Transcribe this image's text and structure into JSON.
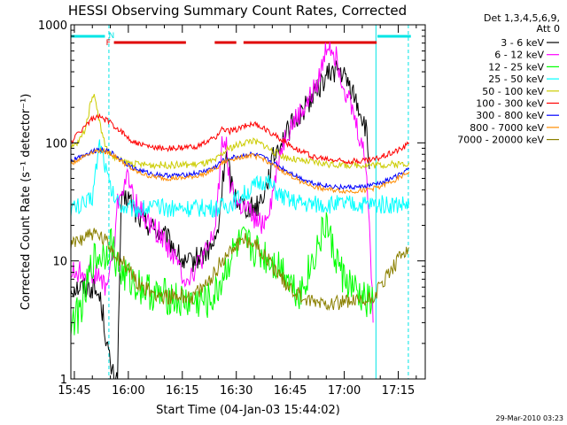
{
  "chart_data": {
    "type": "line",
    "title": "HESSI Observing Summary Count Rates, Corrected",
    "xlabel": "Start Time (04-Jan-03 15:44:02)",
    "ylabel": "Corrected Count Rate (s⁻¹ detector⁻¹)",
    "y_scale": "log",
    "ylim": [
      1,
      1000
    ],
    "xlim": [
      "15:44:02",
      "17:22:30"
    ],
    "x_unit": "minutes since 15:00",
    "x_ticks": [
      {
        "value": 45,
        "label": "15:45"
      },
      {
        "value": 60,
        "label": "16:00"
      },
      {
        "value": 75,
        "label": "16:15"
      },
      {
        "value": 90,
        "label": "16:30"
      },
      {
        "value": 105,
        "label": "16:45"
      },
      {
        "value": 120,
        "label": "17:00"
      },
      {
        "value": 135,
        "label": "17:15"
      }
    ],
    "y_ticks": [
      {
        "value": 1,
        "label": "1"
      },
      {
        "value": 10,
        "label": "10"
      },
      {
        "value": 100,
        "label": "100"
      },
      {
        "value": 1000,
        "label": "1000"
      }
    ],
    "legend_header": [
      "Det 1,3,4,5,6,9,",
      "Att 0"
    ],
    "legend_position": "right",
    "timestamp": "29-Mar-2010 03:23",
    "flags": {
      "night_label": "N",
      "flare_label": "F",
      "night_color": "#00e5e5",
      "flare_color": "#e00000",
      "night_bars": [
        [
          44.0,
          53.5
        ],
        [
          129.2,
          138.5
        ]
      ],
      "flare_bars": [
        [
          56.0,
          76.0
        ],
        [
          84.0,
          90.0
        ],
        [
          92.0,
          129.0
        ]
      ],
      "night_boundaries": [
        {
          "x": 54.6,
          "style": "dashed"
        },
        {
          "x": 128.8,
          "style": "solid"
        },
        {
          "x": 137.8,
          "style": "dashed"
        }
      ]
    },
    "series": [
      {
        "name": "3 - 6 keV",
        "color": "#000000",
        "x": [
          44,
          48,
          50,
          52,
          53,
          54,
          55,
          56,
          57,
          58,
          60,
          62,
          64,
          66,
          68,
          70,
          72,
          74,
          76,
          78,
          80,
          82,
          84,
          85,
          86,
          87,
          88,
          89,
          90,
          92,
          94,
          96,
          98,
          100,
          102,
          104,
          106,
          108,
          110,
          112,
          114,
          116,
          118,
          120,
          122,
          124,
          126,
          127
        ],
        "values": [
          6,
          6,
          6,
          5,
          3.5,
          2,
          1.3,
          1,
          1,
          30,
          35,
          25,
          22,
          20,
          18,
          16,
          14,
          11,
          9,
          10,
          11,
          12,
          14,
          18,
          40,
          80,
          60,
          40,
          35,
          30,
          28,
          30,
          40,
          70,
          100,
          120,
          150,
          180,
          220,
          270,
          330,
          390,
          420,
          360,
          280,
          200,
          130,
          60
        ]
      },
      {
        "name": "6 - 12 keV",
        "color": "#ff00ff",
        "x": [
          44,
          48,
          50,
          52,
          54,
          55,
          56,
          57,
          58,
          60,
          62,
          64,
          66,
          68,
          70,
          72,
          74,
          76,
          78,
          80,
          82,
          84,
          85,
          86,
          87,
          88,
          89,
          90,
          92,
          94,
          96,
          98,
          100,
          102,
          104,
          106,
          108,
          110,
          112,
          114,
          115,
          116,
          118,
          120,
          122,
          124,
          126,
          127,
          128
        ],
        "values": [
          8,
          8,
          8,
          7,
          6,
          9,
          12,
          30,
          40,
          50,
          30,
          25,
          20,
          18,
          15,
          12,
          9,
          7,
          8,
          10,
          12,
          18,
          40,
          100,
          110,
          50,
          40,
          30,
          28,
          25,
          20,
          22,
          35,
          80,
          120,
          150,
          180,
          220,
          300,
          450,
          650,
          700,
          500,
          300,
          200,
          120,
          70,
          20,
          3
        ]
      },
      {
        "name": "12 - 25 keV",
        "color": "#00ff00",
        "x": [
          44,
          46,
          48,
          50,
          52,
          54,
          55,
          56,
          57,
          58,
          60,
          62,
          64,
          66,
          68,
          70,
          72,
          74,
          76,
          78,
          80,
          82,
          84,
          86,
          88,
          90,
          92,
          94,
          96,
          98,
          100,
          102,
          104,
          106,
          108,
          110,
          112,
          114,
          115,
          116,
          118,
          120,
          122,
          124,
          126,
          128
        ],
        "values": [
          3,
          3.5,
          5,
          10,
          11,
          12,
          15,
          12,
          9,
          8,
          7,
          6.5,
          6,
          5.5,
          5,
          5,
          5,
          4.5,
          4.5,
          4.5,
          4.5,
          4.5,
          5,
          7,
          10,
          13,
          14,
          13,
          12,
          11,
          10,
          9,
          8,
          6,
          5.5,
          8,
          12,
          17,
          22,
          15,
          10,
          7,
          6,
          5,
          4.5,
          4.5
        ]
      },
      {
        "name": "25 - 50 keV",
        "color": "#00ffff",
        "x": [
          44,
          48,
          50,
          51,
          52,
          53,
          54,
          55,
          56,
          58,
          60,
          62,
          64,
          66,
          70,
          75,
          80,
          85,
          88,
          90,
          94,
          96,
          98,
          100,
          102,
          105,
          110,
          115,
          120,
          125,
          130,
          135,
          138
        ],
        "values": [
          28,
          30,
          35,
          60,
          100,
          80,
          55,
          42,
          35,
          30,
          28,
          28,
          28,
          28,
          28,
          28,
          28,
          28,
          30,
          33,
          40,
          45,
          48,
          42,
          36,
          32,
          30,
          30,
          30,
          30,
          30,
          30,
          30
        ]
      },
      {
        "name": "50 - 100 keV",
        "color": "#cccc00",
        "x": [
          44,
          46,
          48,
          49,
          50,
          51,
          52,
          53,
          54,
          55,
          56,
          58,
          60,
          62,
          66,
          70,
          75,
          80,
          84,
          86,
          88,
          90,
          92,
          94,
          96,
          98,
          100,
          104,
          108,
          112,
          116,
          120,
          125,
          130,
          135,
          138
        ],
        "values": [
          90,
          100,
          130,
          180,
          260,
          230,
          150,
          110,
          90,
          80,
          75,
          70,
          68,
          66,
          65,
          65,
          65,
          66,
          70,
          80,
          90,
          95,
          100,
          105,
          100,
          95,
          85,
          75,
          70,
          68,
          66,
          65,
          65,
          65,
          66,
          68
        ]
      },
      {
        "name": "100 - 300 keV",
        "color": "#ff0000",
        "x": [
          44,
          46,
          48,
          50,
          52,
          54,
          56,
          58,
          60,
          62,
          66,
          70,
          75,
          80,
          84,
          86,
          88,
          90,
          92,
          94,
          96,
          98,
          100,
          104,
          108,
          112,
          116,
          120,
          124,
          128,
          132,
          136,
          138
        ],
        "values": [
          100,
          120,
          140,
          160,
          165,
          155,
          140,
          125,
          110,
          100,
          92,
          90,
          90,
          95,
          110,
          130,
          125,
          130,
          138,
          145,
          140,
          130,
          120,
          100,
          85,
          75,
          72,
          70,
          70,
          72,
          80,
          90,
          100
        ]
      },
      {
        "name": "300 - 800 keV",
        "color": "#0000ff",
        "x": [
          44,
          46,
          48,
          50,
          52,
          54,
          56,
          58,
          60,
          62,
          66,
          70,
          75,
          80,
          84,
          86,
          88,
          90,
          92,
          94,
          96,
          98,
          100,
          104,
          108,
          112,
          116,
          120,
          124,
          128,
          132,
          136,
          138
        ],
        "values": [
          70,
          75,
          80,
          85,
          88,
          86,
          80,
          72,
          65,
          60,
          55,
          53,
          53,
          56,
          62,
          70,
          74,
          76,
          78,
          80,
          78,
          74,
          68,
          58,
          50,
          45,
          43,
          42,
          42,
          44,
          48,
          55,
          60
        ]
      },
      {
        "name": "800 - 7000 keV",
        "color": "#ff8c00",
        "x": [
          44,
          46,
          48,
          50,
          52,
          54,
          56,
          58,
          60,
          62,
          66,
          70,
          75,
          80,
          84,
          86,
          88,
          90,
          92,
          94,
          96,
          98,
          100,
          104,
          108,
          112,
          116,
          120,
          124,
          128,
          132,
          136,
          138
        ],
        "values": [
          66,
          72,
          78,
          84,
          86,
          84,
          78,
          70,
          63,
          57,
          52,
          50,
          50,
          53,
          60,
          67,
          72,
          74,
          77,
          78,
          76,
          72,
          65,
          55,
          47,
          42,
          40,
          39,
          39,
          41,
          45,
          52,
          57
        ]
      },
      {
        "name": "7000 - 20000 keV",
        "color": "#8b8000",
        "x": [
          44,
          46,
          48,
          50,
          52,
          54,
          56,
          58,
          60,
          62,
          64,
          66,
          70,
          74,
          78,
          80,
          82,
          84,
          86,
          88,
          90,
          92,
          94,
          96,
          98,
          100,
          102,
          104,
          106,
          108,
          110,
          114,
          118,
          122,
          126,
          128,
          130,
          132,
          134,
          136,
          138
        ],
        "values": [
          13,
          15,
          16.5,
          17,
          16,
          14,
          12,
          10,
          8.5,
          7,
          6,
          5.5,
          5,
          5,
          5,
          5.5,
          6.5,
          8,
          10,
          12,
          14,
          15,
          15,
          13,
          11,
          9,
          7.5,
          6.5,
          5.5,
          5,
          4.5,
          4.5,
          4.5,
          4.5,
          4.5,
          5,
          6,
          7.5,
          9,
          11,
          13
        ]
      }
    ]
  }
}
